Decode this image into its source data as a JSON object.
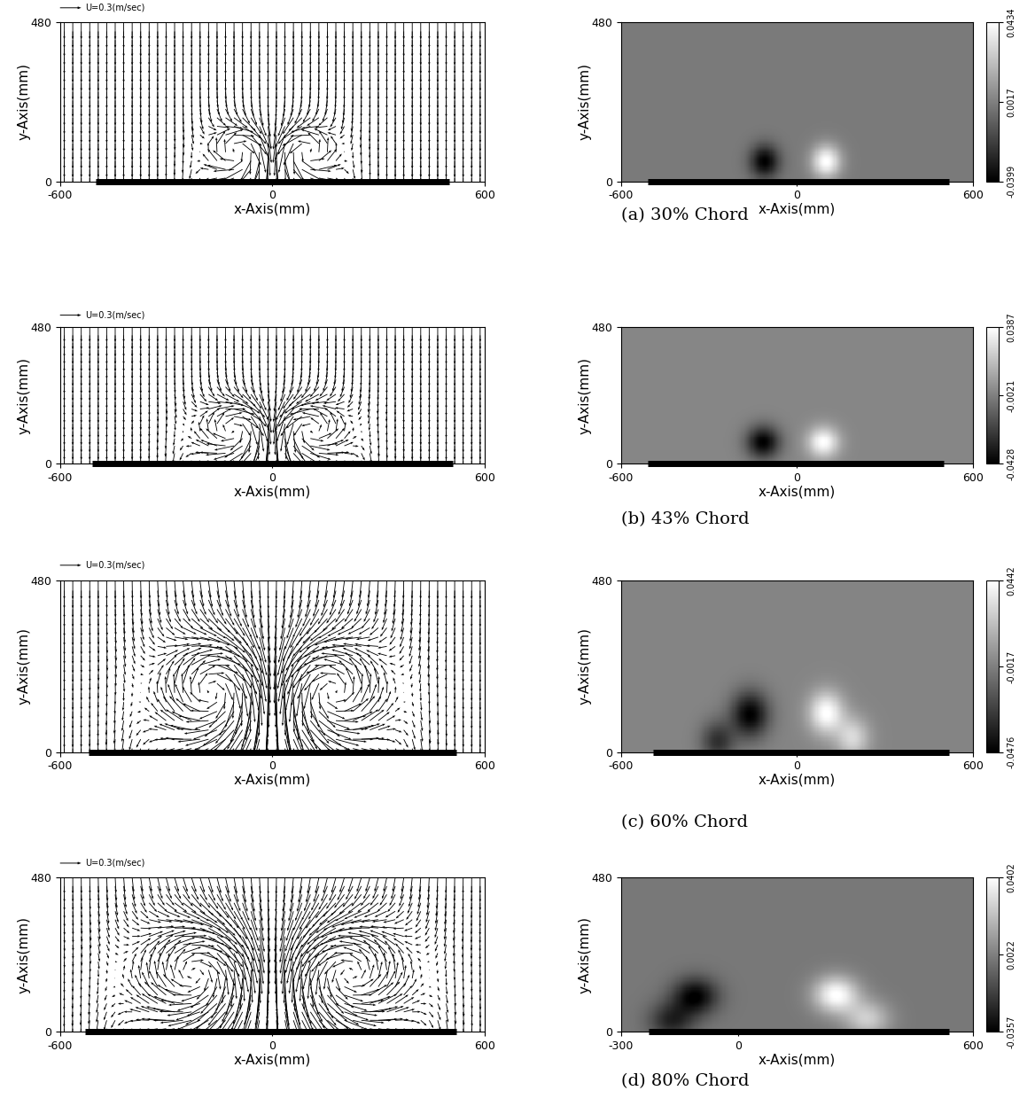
{
  "chart_data": [
    {
      "type": "quiver",
      "xlabel": "x-Axis(mm)",
      "ylabel": "y-Axis(mm)",
      "xlim": [
        -600,
        600
      ],
      "ylim": [
        0,
        480
      ],
      "xticks": [
        -600,
        0,
        600
      ],
      "yticks": [
        0,
        480
      ],
      "annotations": [
        "U=0.3(m/sec)"
      ],
      "reference_vector": 0.3,
      "background_velocity": [
        0,
        -0.25
      ],
      "wing_span": [
        -500,
        500
      ],
      "vortices": [
        {
          "x": -100,
          "y": 90,
          "core_radius": 60,
          "peak_speed": -0.3
        },
        {
          "x": 100,
          "y": 90,
          "core_radius": 60,
          "peak_speed": 0.3
        }
      ]
    },
    {
      "type": "contour",
      "xlabel": "x-Axis(mm)",
      "ylabel": "y-Axis(mm)",
      "subtitle": "(a) 30% Chord",
      "xlim": [
        -600,
        600
      ],
      "ylim": [
        0,
        480
      ],
      "xticks": [
        -600,
        0,
        600
      ],
      "yticks": [
        0,
        480
      ],
      "clim": [
        -0.0399,
        0.0434
      ],
      "cticks": [
        -0.0399,
        0.0017,
        0.0434
      ],
      "wing_span": [
        -510,
        520
      ],
      "vortices": [
        {
          "x": -110,
          "y": 60,
          "core_radius": 35,
          "strength": -0.0399
        },
        {
          "x": 100,
          "y": 60,
          "core_radius": 35,
          "strength": 0.0434
        }
      ]
    },
    {
      "type": "quiver",
      "xlabel": "x-Axis(mm)",
      "ylabel": "y-Axis(mm)",
      "xlim": [
        -600,
        600
      ],
      "ylim": [
        0,
        480
      ],
      "xticks": [
        -600,
        0,
        600
      ],
      "yticks": [
        0,
        480
      ],
      "annotations": [
        "U=0.3(m/sec)"
      ],
      "reference_vector": 0.3,
      "background_velocity": [
        0,
        -0.25
      ],
      "wing_span": [
        -510,
        510
      ],
      "vortices": [
        {
          "x": -110,
          "y": 120,
          "core_radius": 75,
          "peak_speed": -0.3
        },
        {
          "x": 110,
          "y": 120,
          "core_radius": 75,
          "peak_speed": 0.3
        }
      ]
    },
    {
      "type": "contour",
      "xlabel": "x-Axis(mm)",
      "ylabel": "y-Axis(mm)",
      "subtitle": "(b) 43% Chord",
      "xlim": [
        -600,
        600
      ],
      "ylim": [
        0,
        480
      ],
      "xticks": [
        -600,
        0,
        600
      ],
      "yticks": [
        0,
        480
      ],
      "clim": [
        -0.0428,
        0.0387
      ],
      "cticks": [
        -0.0428,
        -0.0021,
        0.0387
      ],
      "wing_span": [
        -510,
        500
      ],
      "vortices": [
        {
          "x": -115,
          "y": 75,
          "core_radius": 40,
          "strength": -0.0428
        },
        {
          "x": 90,
          "y": 75,
          "core_radius": 38,
          "strength": 0.0387
        }
      ]
    },
    {
      "type": "quiver",
      "xlabel": "x-Axis(mm)",
      "ylabel": "y-Axis(mm)",
      "xlim": [
        -600,
        600
      ],
      "ylim": [
        0,
        480
      ],
      "xticks": [
        -600,
        0,
        600
      ],
      "yticks": [
        0,
        480
      ],
      "annotations": [
        "U=0.3(m/sec)"
      ],
      "reference_vector": 0.3,
      "background_velocity": [
        0,
        -0.25
      ],
      "wing_span": [
        -520,
        520
      ],
      "vortices": [
        {
          "x": -170,
          "y": 170,
          "core_radius": 110,
          "peak_speed": -0.35
        },
        {
          "x": 170,
          "y": 170,
          "core_radius": 110,
          "peak_speed": 0.35
        }
      ]
    },
    {
      "type": "contour",
      "xlabel": "x-Axis(mm)",
      "ylabel": "y-Axis(mm)",
      "subtitle": "(c) 60% Chord",
      "xlim": [
        -600,
        600
      ],
      "ylim": [
        0,
        480
      ],
      "xticks": [
        -600,
        0,
        600
      ],
      "yticks": [
        0,
        480
      ],
      "clim": [
        -0.0476,
        0.0442
      ],
      "cticks": [
        -0.0476,
        -0.0017,
        0.0442
      ],
      "wing_span": [
        -490,
        520
      ],
      "vortices": [
        {
          "x": -160,
          "y": 105,
          "core_radius": 45,
          "strength": -0.0476
        },
        {
          "x": 100,
          "y": 110,
          "core_radius": 42,
          "strength": 0.0442
        },
        {
          "x": -270,
          "y": 30,
          "core_radius": 40,
          "strength": -0.03
        },
        {
          "x": 190,
          "y": 40,
          "core_radius": 40,
          "strength": 0.03
        }
      ]
    },
    {
      "type": "quiver",
      "xlabel": "x-Axis(mm)",
      "ylabel": "y-Axis(mm)",
      "xlim": [
        -600,
        600
      ],
      "ylim": [
        0,
        480
      ],
      "xticks": [
        -600,
        0,
        600
      ],
      "yticks": [
        0,
        480
      ],
      "annotations": [
        "U=0.3(m/sec)"
      ],
      "reference_vector": 0.3,
      "background_velocity": [
        0,
        -0.25
      ],
      "wing_span": [
        -530,
        520
      ],
      "vortices": [
        {
          "x": -220,
          "y": 180,
          "core_radius": 120,
          "peak_speed": -0.35
        },
        {
          "x": 220,
          "y": 180,
          "core_radius": 120,
          "peak_speed": 0.35
        }
      ]
    },
    {
      "type": "contour",
      "xlabel": "x-Axis(mm)",
      "ylabel": "y-Axis(mm)",
      "subtitle": "(d) 80% Chord",
      "xlim": [
        -300,
        600
      ],
      "ylim": [
        0,
        480
      ],
      "xticks": [
        -300,
        0,
        600
      ],
      "yticks": [
        0,
        480
      ],
      "clim": [
        -0.0357,
        0.0402
      ],
      "cticks": [
        -0.0357,
        0.0022,
        0.0402
      ],
      "wing_span": [
        -230,
        540
      ],
      "vortices": [
        {
          "x": -110,
          "y": 110,
          "core_radius": 40,
          "strength": -0.0357
        },
        {
          "x": 250,
          "y": 115,
          "core_radius": 40,
          "strength": 0.0402
        },
        {
          "x": -170,
          "y": 35,
          "core_radius": 40,
          "strength": -0.025
        },
        {
          "x": 330,
          "y": 40,
          "core_radius": 40,
          "strength": 0.025
        }
      ]
    }
  ]
}
